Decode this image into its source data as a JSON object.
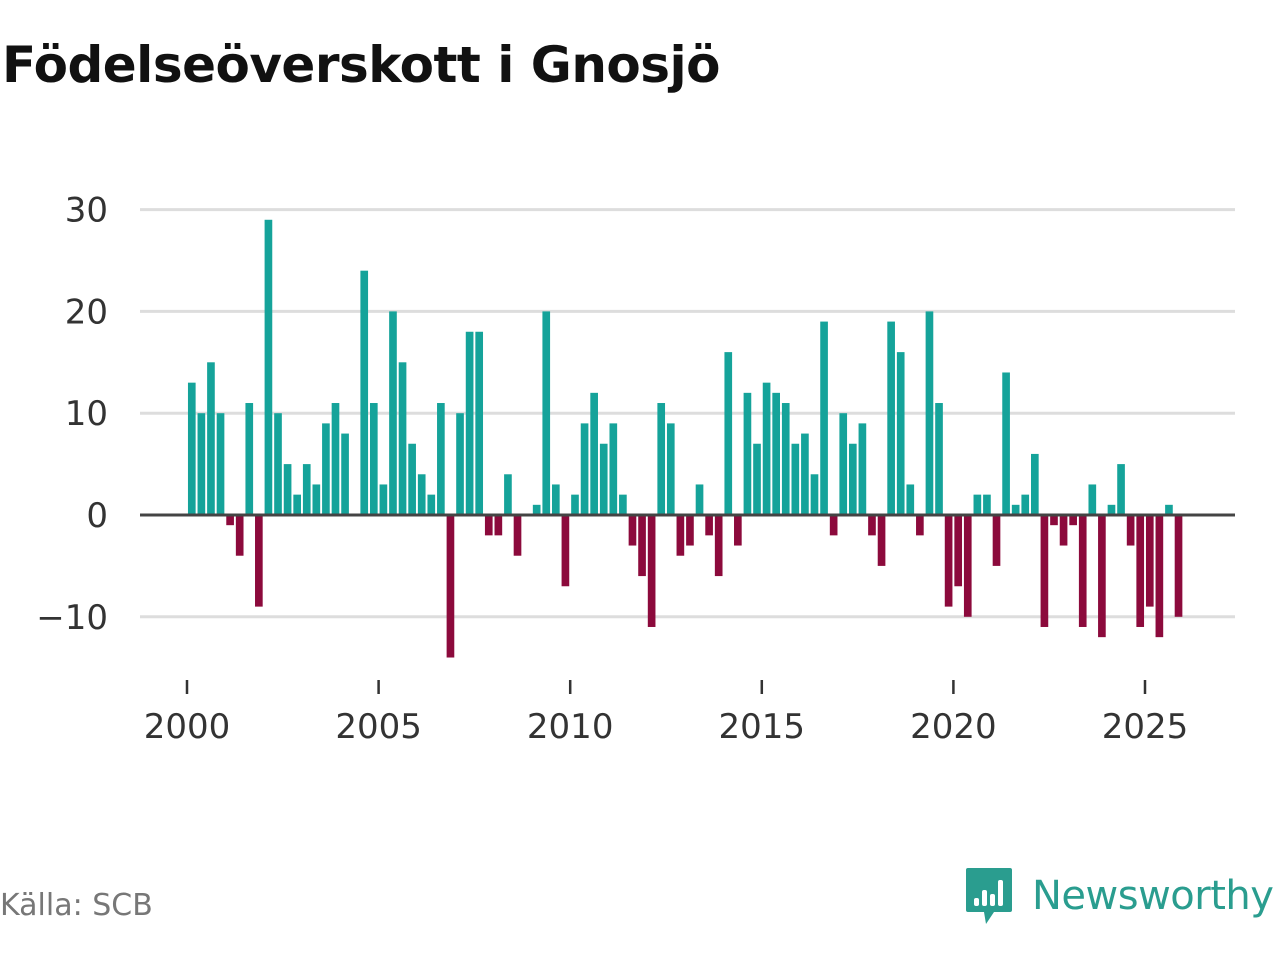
{
  "title": "Födelseöverskott i Gnosjö",
  "source": "Källa: SCB",
  "brand": {
    "name": "Newsworthy",
    "logo_icon": "newsworthy-bar-chart-icon"
  },
  "colors": {
    "positive": "#15a39a",
    "negative": "#8c0a3c",
    "grid": "#dddddd",
    "zero_line": "#444444",
    "axis": "#333333",
    "brand": "#2a9d8f"
  },
  "chart_data": {
    "type": "bar",
    "title": "Födelseöverskott i Gnosjö",
    "xlabel": "",
    "ylabel": "",
    "frequency": "quarterly",
    "start": "2000-Q1",
    "grid": true,
    "legend": "none",
    "xlim": [
      1999.75,
      2027.25
    ],
    "ylim": [
      -15,
      31
    ],
    "yticks": [
      -10,
      0,
      10,
      20,
      30
    ],
    "ytick_labels": [
      "−10",
      "0",
      "10",
      "20",
      "30"
    ],
    "xticks": [
      2000,
      2005,
      2010,
      2015,
      2020,
      2025
    ],
    "xtick_labels": [
      "2000",
      "2005",
      "2010",
      "2015",
      "2020",
      "2025"
    ],
    "values": [
      13,
      10,
      15,
      10,
      -1,
      -4,
      11,
      -9,
      29,
      10,
      5,
      2,
      5,
      3,
      9,
      11,
      8,
      0,
      24,
      11,
      3,
      20,
      15,
      7,
      4,
      2,
      11,
      -14,
      10,
      18,
      18,
      -2,
      -2,
      4,
      -4,
      0,
      1,
      20,
      3,
      -7,
      2,
      9,
      12,
      7,
      9,
      2,
      -3,
      -6,
      -11,
      11,
      9,
      -4,
      -3,
      3,
      -2,
      -6,
      16,
      -3,
      12,
      7,
      13,
      12,
      11,
      7,
      8,
      4,
      19,
      -2,
      10,
      7,
      9,
      -2,
      -5,
      19,
      16,
      3,
      -2,
      20,
      11,
      -9,
      -7,
      -10,
      2,
      2,
      -5,
      14,
      1,
      2,
      6,
      -11,
      -1,
      -3,
      -1,
      -11,
      3,
      -12,
      1,
      5,
      -3,
      -11,
      -9,
      -12,
      1,
      -10
    ]
  }
}
